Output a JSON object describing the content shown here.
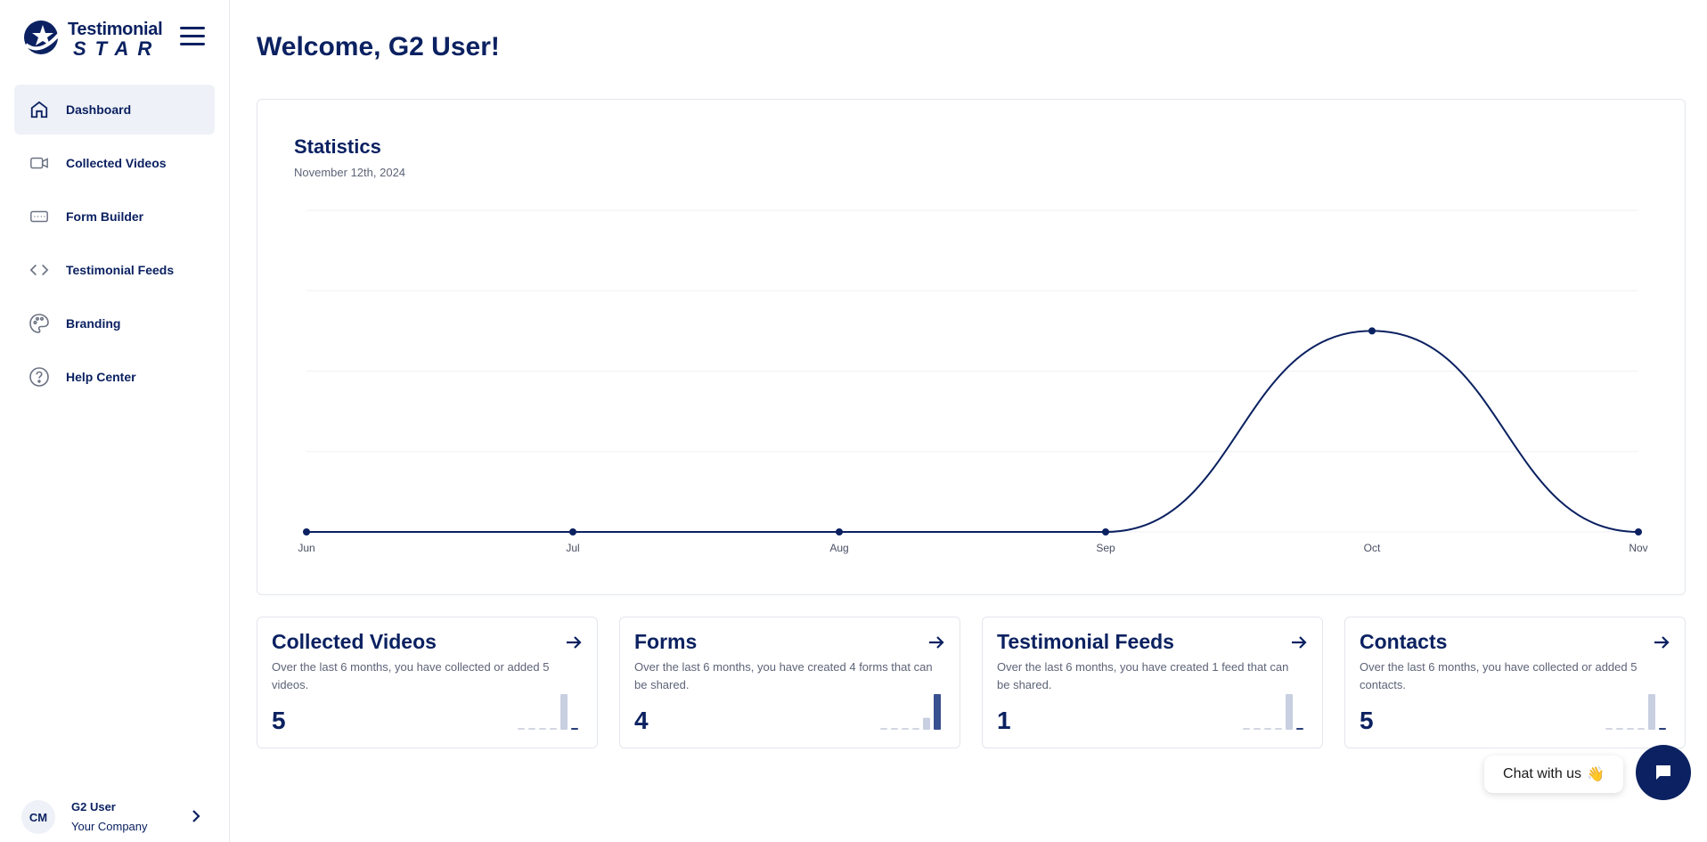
{
  "brand": {
    "name_top": "Testimonial",
    "name_bottom": "STAR",
    "color": "#0b2161"
  },
  "sidebar": {
    "items": [
      {
        "label": "Dashboard",
        "icon": "home-icon",
        "active": true
      },
      {
        "label": "Collected Videos",
        "icon": "video-icon",
        "active": false
      },
      {
        "label": "Form Builder",
        "icon": "form-icon",
        "active": false
      },
      {
        "label": "Testimonial Feeds",
        "icon": "code-icon",
        "active": false
      },
      {
        "label": "Branding",
        "icon": "palette-icon",
        "active": false
      },
      {
        "label": "Help Center",
        "icon": "help-icon",
        "active": false
      }
    ]
  },
  "user": {
    "initials": "CM",
    "name": "G2 User",
    "company": "Your Company"
  },
  "main": {
    "welcome": "Welcome, G2 User!"
  },
  "statistics": {
    "title": "Statistics",
    "date": "November 12th, 2024"
  },
  "chart_data": {
    "type": "line",
    "categories": [
      "Jun",
      "Jul",
      "Aug",
      "Sep",
      "Oct",
      "Nov"
    ],
    "values": [
      0,
      0,
      0,
      0,
      5,
      0
    ],
    "ylim": [
      0,
      8
    ],
    "grid": true,
    "smooth": true,
    "color": "#0b2161"
  },
  "cards": [
    {
      "title": "Collected Videos",
      "description": "Over the last 6 months, you have collected or added 5 videos.",
      "value": "5",
      "spark": [
        0,
        0,
        0,
        0,
        5,
        0
      ],
      "spark_color": "#c8cfe0"
    },
    {
      "title": "Forms",
      "description": "Over the last 6 months, you have created 4 forms that can be shared.",
      "value": "4",
      "spark": [
        0,
        0,
        0,
        0,
        1,
        3
      ],
      "spark_color": "#3a5190"
    },
    {
      "title": "Testimonial Feeds",
      "description": "Over the last 6 months, you have created 1 feed that can be shared.",
      "value": "1",
      "spark": [
        0,
        0,
        0,
        0,
        1,
        0
      ],
      "spark_color": "#c8cfe0"
    },
    {
      "title": "Contacts",
      "description": "Over the last 6 months, you have collected or added 5 contacts.",
      "value": "5",
      "spark": [
        0,
        0,
        0,
        0,
        5,
        0
      ],
      "spark_color": "#c8cfe0"
    }
  ],
  "chat": {
    "label": "Chat with us",
    "emoji": "👋"
  }
}
